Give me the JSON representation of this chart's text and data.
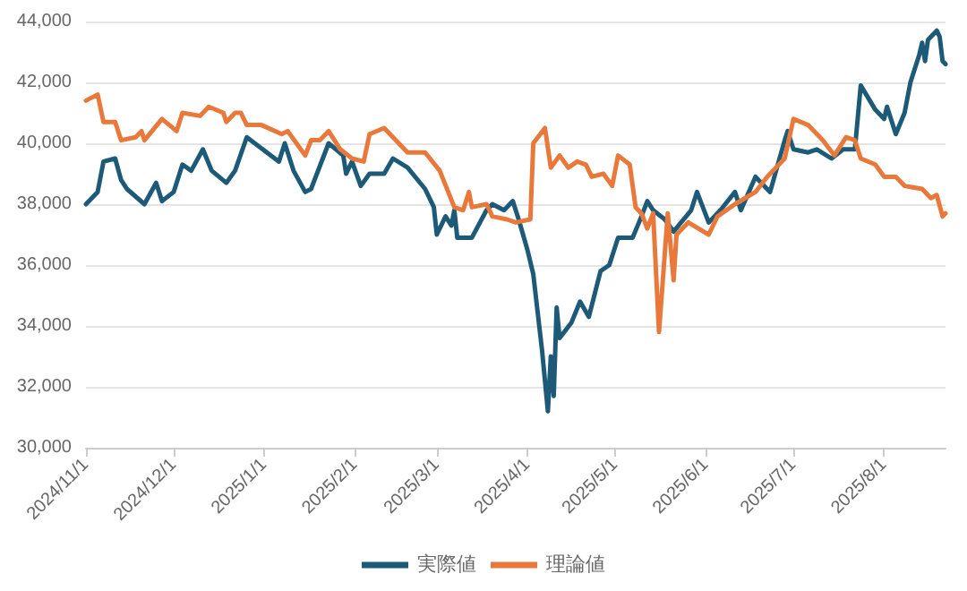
{
  "chart_data": {
    "type": "line",
    "legend": "bottom",
    "grid": "y",
    "marker": "none",
    "line_style": "solid",
    "xlim": [
      "2024-11-01",
      "2025-08-22"
    ],
    "xticks": [
      {
        "value": "2024-11-01",
        "label": "2024/11/1"
      },
      {
        "value": "2024-12-01",
        "label": "2024/12/1"
      },
      {
        "value": "2025-01-01",
        "label": "2025/1/1"
      },
      {
        "value": "2025-02-01",
        "label": "2025/2/1"
      },
      {
        "value": "2025-03-01",
        "label": "2025/3/1"
      },
      {
        "value": "2025-04-01",
        "label": "2025/4/1"
      },
      {
        "value": "2025-05-01",
        "label": "2025/5/1"
      },
      {
        "value": "2025-06-01",
        "label": "2025/6/1"
      },
      {
        "value": "2025-07-01",
        "label": "2025/7/1"
      },
      {
        "value": "2025-08-01",
        "label": "2025/8/1"
      }
    ],
    "ylim": [
      30000,
      44000
    ],
    "yticks": [
      {
        "value": 30000,
        "label": "30,000"
      },
      {
        "value": 32000,
        "label": "32,000"
      },
      {
        "value": 34000,
        "label": "34,000"
      },
      {
        "value": 36000,
        "label": "36,000"
      },
      {
        "value": 38000,
        "label": "38,000"
      },
      {
        "value": 40000,
        "label": "40,000"
      },
      {
        "value": 42000,
        "label": "42,000"
      },
      {
        "value": 44000,
        "label": "44,000"
      }
    ],
    "series": [
      {
        "name": "実際値",
        "color": "#1d5a78",
        "x": [
          "2024-11-01",
          "2024-11-05",
          "2024-11-07",
          "2024-11-11",
          "2024-11-13",
          "2024-11-15",
          "2024-11-21",
          "2024-11-25",
          "2024-11-27",
          "2024-12-01",
          "2024-12-04",
          "2024-12-07",
          "2024-12-11",
          "2024-12-14",
          "2024-12-19",
          "2024-12-22",
          "2024-12-26",
          "2025-01-06",
          "2025-01-08",
          "2025-01-11",
          "2025-01-15",
          "2025-01-17",
          "2025-01-23",
          "2025-01-28",
          "2025-01-29",
          "2025-01-31",
          "2025-02-03",
          "2025-02-06",
          "2025-02-11",
          "2025-02-14",
          "2025-02-19",
          "2025-02-25",
          "2025-02-28",
          "2025-03-01",
          "2025-03-04",
          "2025-03-06",
          "2025-03-07",
          "2025-03-08",
          "2025-03-13",
          "2025-03-18",
          "2025-03-20",
          "2025-03-24",
          "2025-03-27",
          "2025-03-29",
          "2025-04-01",
          "2025-04-03",
          "2025-04-06",
          "2025-04-08",
          "2025-04-09",
          "2025-04-10",
          "2025-04-11",
          "2025-04-12",
          "2025-04-16",
          "2025-04-19",
          "2025-04-22",
          "2025-04-26",
          "2025-04-29",
          "2025-05-02",
          "2025-05-07",
          "2025-05-10",
          "2025-05-12",
          "2025-05-14",
          "2025-05-18",
          "2025-05-21",
          "2025-05-27",
          "2025-05-29",
          "2025-06-02",
          "2025-06-06",
          "2025-06-11",
          "2025-06-13",
          "2025-06-18",
          "2025-06-23",
          "2025-06-28",
          "2025-06-29",
          "2025-07-01",
          "2025-07-06",
          "2025-07-09",
          "2025-07-14",
          "2025-07-18",
          "2025-07-22",
          "2025-07-24",
          "2025-07-29",
          "2025-08-01",
          "2025-08-02",
          "2025-08-05",
          "2025-08-08",
          "2025-08-10",
          "2025-08-13",
          "2025-08-14",
          "2025-08-15",
          "2025-08-16",
          "2025-08-19",
          "2025-08-20",
          "2025-08-21",
          "2025-08-22"
        ],
        "values": [
          38000,
          38400,
          39400,
          39500,
          38800,
          38500,
          38000,
          38700,
          38100,
          38400,
          39300,
          39100,
          39800,
          39100,
          38700,
          39100,
          40200,
          39400,
          40000,
          39100,
          38400,
          38500,
          40000,
          39600,
          39000,
          39400,
          38600,
          39000,
          39000,
          39500,
          39200,
          38500,
          37900,
          37000,
          37600,
          37300,
          37800,
          36900,
          36900,
          37800,
          38000,
          37800,
          38100,
          37500,
          36500,
          35700,
          33200,
          31200,
          33000,
          31700,
          34600,
          33600,
          34100,
          34800,
          34300,
          35800,
          36000,
          36900,
          36900,
          37600,
          38100,
          37800,
          37500,
          37100,
          37800,
          38400,
          37400,
          37800,
          38400,
          37800,
          38900,
          38400,
          40100,
          40400,
          39800,
          39700,
          39800,
          39500,
          39800,
          39800,
          41900,
          41100,
          40800,
          41200,
          40300,
          41000,
          42000,
          42900,
          43300,
          42700,
          43400,
          43700,
          43500,
          42700,
          42600
        ]
      },
      {
        "name": "理論値",
        "color": "#e8793a",
        "x": [
          "2024-11-01",
          "2024-11-05",
          "2024-11-07",
          "2024-11-11",
          "2024-11-13",
          "2024-11-18",
          "2024-11-20",
          "2024-11-21",
          "2024-11-27",
          "2024-12-02",
          "2024-12-04",
          "2024-12-10",
          "2024-12-13",
          "2024-12-18",
          "2024-12-19",
          "2024-12-22",
          "2024-12-24",
          "2024-12-26",
          "2024-12-31",
          "2025-01-07",
          "2025-01-09",
          "2025-01-12",
          "2025-01-15",
          "2025-01-17",
          "2025-01-20",
          "2025-01-23",
          "2025-01-27",
          "2025-01-31",
          "2025-02-04",
          "2025-02-06",
          "2025-02-11",
          "2025-02-14",
          "2025-02-19",
          "2025-02-25",
          "2025-03-02",
          "2025-03-07",
          "2025-03-10",
          "2025-03-12",
          "2025-03-13",
          "2025-03-18",
          "2025-03-20",
          "2025-03-25",
          "2025-03-28",
          "2025-04-02",
          "2025-04-03",
          "2025-04-07",
          "2025-04-09",
          "2025-04-12",
          "2025-04-15",
          "2025-04-18",
          "2025-04-21",
          "2025-04-23",
          "2025-04-27",
          "2025-04-30",
          "2025-05-02",
          "2025-05-06",
          "2025-05-08",
          "2025-05-10",
          "2025-05-12",
          "2025-05-14",
          "2025-05-16",
          "2025-05-19",
          "2025-05-21",
          "2025-05-22",
          "2025-05-26",
          "2025-06-02",
          "2025-06-05",
          "2025-06-11",
          "2025-06-18",
          "2025-06-22",
          "2025-06-28",
          "2025-07-01",
          "2025-07-06",
          "2025-07-11",
          "2025-07-15",
          "2025-07-19",
          "2025-07-22",
          "2025-07-24",
          "2025-07-29",
          "2025-08-01",
          "2025-08-05",
          "2025-08-08",
          "2025-08-14",
          "2025-08-17",
          "2025-08-19",
          "2025-08-21",
          "2025-08-22"
        ],
        "values": [
          41400,
          41600,
          40700,
          40700,
          40100,
          40200,
          40400,
          40100,
          40800,
          40400,
          41000,
          40900,
          41200,
          41000,
          40700,
          41000,
          41000,
          40600,
          40600,
          40300,
          40400,
          40000,
          39600,
          40100,
          40100,
          40400,
          39800,
          39500,
          39400,
          40300,
          40500,
          40200,
          39700,
          39700,
          39100,
          37900,
          37800,
          38400,
          37900,
          38000,
          37600,
          37500,
          37400,
          37500,
          40000,
          40500,
          39200,
          39600,
          39200,
          39400,
          39300,
          38900,
          39000,
          38600,
          39600,
          39300,
          37900,
          37700,
          37200,
          37700,
          33800,
          37700,
          35500,
          37000,
          37400,
          37000,
          37600,
          38000,
          38400,
          38900,
          39500,
          40800,
          40600,
          40100,
          39600,
          40200,
          40100,
          39500,
          39300,
          38900,
          38900,
          38600,
          38500,
          38200,
          38300,
          37600,
          37700
        ]
      }
    ]
  }
}
